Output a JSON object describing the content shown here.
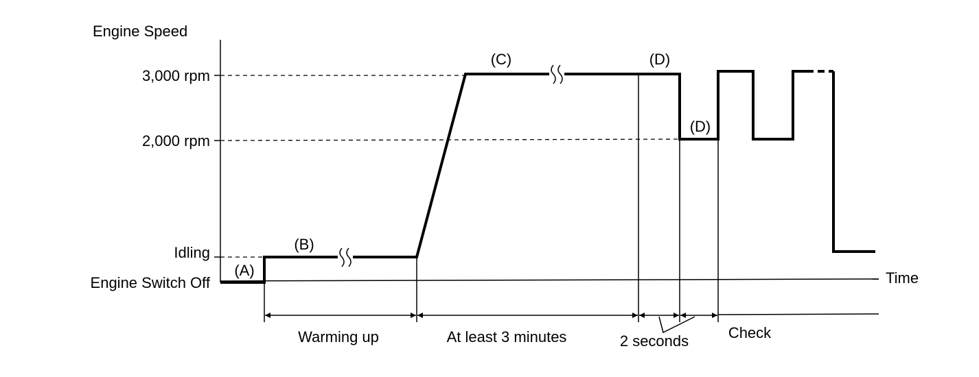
{
  "axis": {
    "y_label": "Engine Speed",
    "x_label": "Time",
    "levels": [
      "3,000 rpm",
      "2,000 rpm",
      "Idling",
      "Engine Switch Off"
    ]
  },
  "points": [
    "(A)",
    "(B)",
    "(C)",
    "(D)",
    "(D)"
  ],
  "phases": [
    "Warming up",
    "At least 3 minutes",
    "2 seconds",
    "Check"
  ]
}
